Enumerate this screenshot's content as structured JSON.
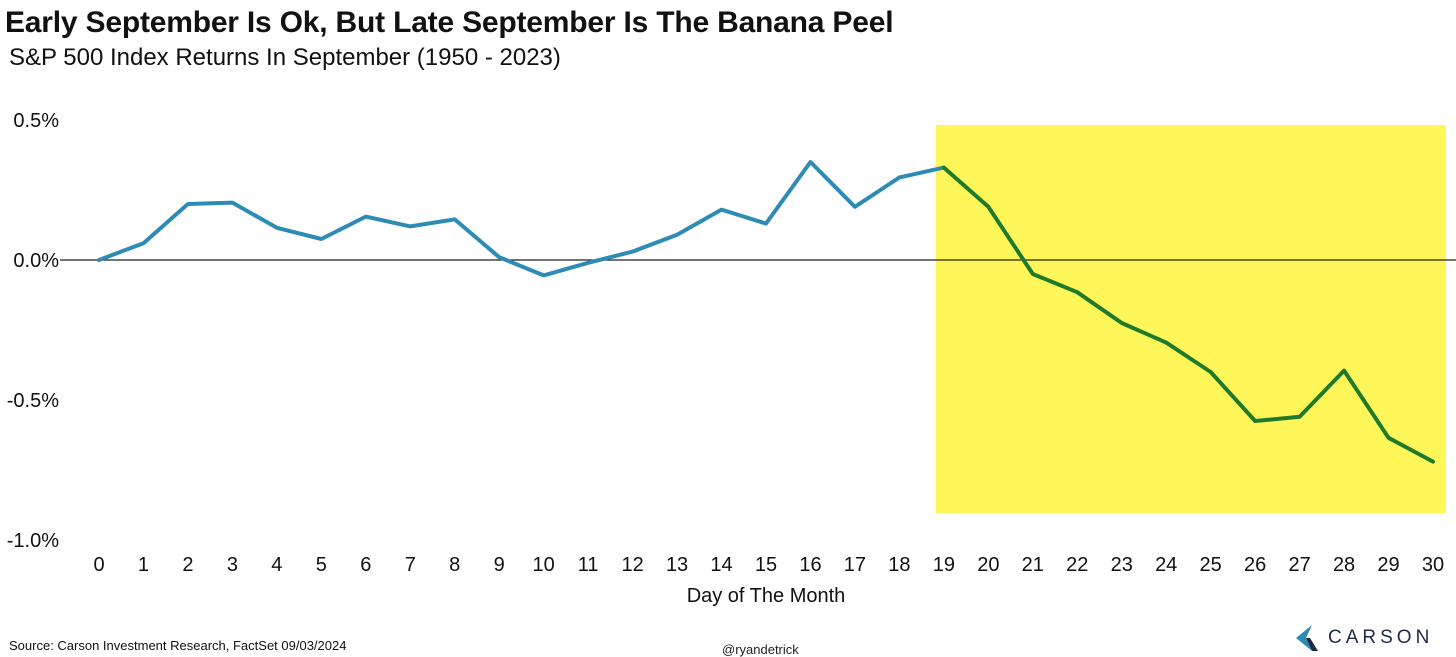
{
  "header": {
    "title": "Early September Is Ok, But Late September Is The Banana Peel",
    "subtitle": "S&P 500 Index Returns In September (1950 - 2023)"
  },
  "footer": {
    "source": "Source: Carson Investment Research, FactSet 09/03/2024",
    "handle": "@ryandetrick",
    "brand": "CARSON"
  },
  "colors": {
    "early_line": "#2e8bb5",
    "late_line": "#1f7a2a",
    "highlight": "#fff75a",
    "zero_line": "#222222"
  },
  "icons": {
    "brand_logo": "carson-logo-icon"
  },
  "chart_data": {
    "type": "line",
    "title": "Early September Is Ok, But Late September Is The Banana Peel",
    "subtitle": "S&P 500 Index Returns In September (1950 - 2023)",
    "xlabel": "Day of The Month",
    "ylabel": "",
    "x": [
      0,
      1,
      2,
      3,
      4,
      5,
      6,
      7,
      8,
      9,
      10,
      11,
      12,
      13,
      14,
      15,
      16,
      17,
      18,
      19,
      20,
      21,
      22,
      23,
      24,
      25,
      26,
      27,
      28,
      29,
      30
    ],
    "y_ticks": [
      "0.5%",
      "0.0%",
      "-0.5%",
      "-1.0%"
    ],
    "y_tick_values": [
      0.5,
      0.0,
      -0.5,
      -1.0
    ],
    "ylim": [
      -1.0,
      0.5
    ],
    "xlim": [
      0,
      30
    ],
    "grid": false,
    "series": [
      {
        "values": [
          0.0,
          0.06,
          0.2,
          0.205,
          0.115,
          0.075,
          0.155,
          0.12,
          0.145,
          0.01,
          -0.055,
          -0.01,
          0.03,
          0.09,
          0.18,
          0.13,
          0.35,
          0.19,
          0.295,
          0.33,
          0.19,
          -0.05,
          -0.115,
          -0.225,
          -0.295,
          -0.4,
          -0.575,
          -0.56,
          -0.395,
          -0.635,
          -0.72
        ]
      }
    ],
    "highlight_region": {
      "from_x": 19,
      "to_x": 30
    }
  }
}
